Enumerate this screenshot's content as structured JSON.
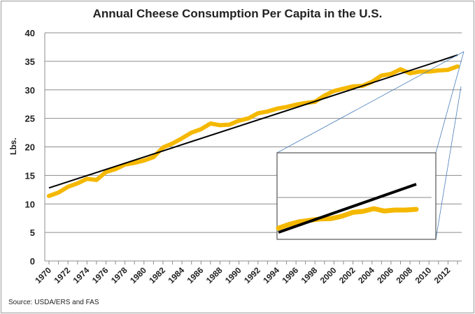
{
  "chart_data": {
    "type": "line",
    "title": "Annual Cheese Consumption Per Capita in the U.S.",
    "ylabel": "Lbs.",
    "xlabel": "",
    "ylim": [
      0,
      40
    ],
    "yticks": [
      0,
      5,
      10,
      15,
      20,
      25,
      30,
      35,
      40
    ],
    "x": [
      1970,
      1971,
      1972,
      1973,
      1974,
      1975,
      1976,
      1977,
      1978,
      1979,
      1980,
      1981,
      1982,
      1983,
      1984,
      1985,
      1986,
      1987,
      1988,
      1989,
      1990,
      1991,
      1992,
      1993,
      1994,
      1995,
      1996,
      1997,
      1998,
      1999,
      2000,
      2001,
      2002,
      2003,
      2004,
      2005,
      2006,
      2007,
      2008,
      2009,
      2010,
      2011,
      2012,
      2013
    ],
    "xtick_labels": [
      "1970",
      "1972",
      "1974",
      "1976",
      "1978",
      "1980",
      "1982",
      "1984",
      "1986",
      "1988",
      "1990",
      "1992",
      "1994",
      "1996",
      "1998",
      "2000",
      "2002",
      "2004",
      "2006",
      "2008",
      "2010",
      "2012"
    ],
    "series": [
      {
        "name": "Cheese consumption",
        "color": "#f5b800",
        "values": [
          11.4,
          12.0,
          13.0,
          13.6,
          14.4,
          14.2,
          15.6,
          16.1,
          16.9,
          17.2,
          17.6,
          18.2,
          19.9,
          20.6,
          21.5,
          22.5,
          23.1,
          24.1,
          23.8,
          23.9,
          24.6,
          25.0,
          25.9,
          26.2,
          26.7,
          27.0,
          27.4,
          27.7,
          27.9,
          29.0,
          29.8,
          30.2,
          30.6,
          30.7,
          31.4,
          32.5,
          32.8,
          33.6,
          32.9,
          33.2,
          33.2,
          33.4,
          33.5,
          34.1
        ]
      },
      {
        "name": "Linear trend",
        "color": "#000000",
        "x": [
          1970,
          2013
        ],
        "values": [
          12.8,
          36.1
        ]
      }
    ],
    "inset": {
      "description": "zoomed view of recent years",
      "series_color": "#f5b800",
      "trend_color": "#000000"
    }
  },
  "source": "Source: USDA/ERS and FAS"
}
